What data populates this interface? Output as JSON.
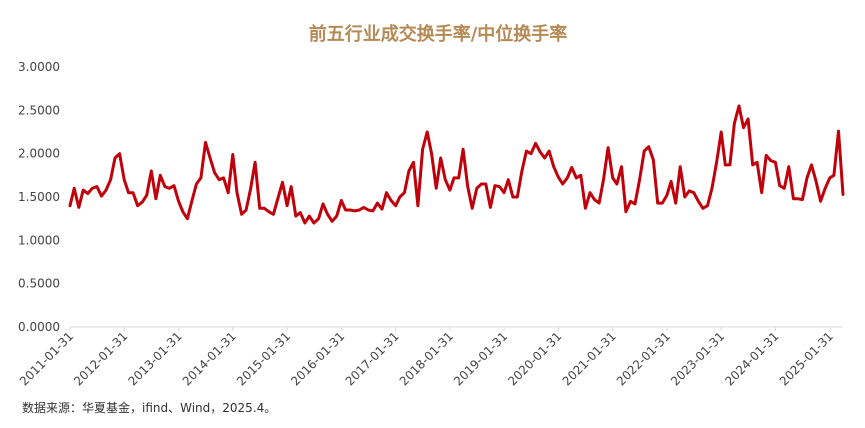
{
  "chart_data": {
    "type": "line",
    "title": "前五行业成交换手率/中位换手率",
    "xlabel": "",
    "ylabel": "",
    "ylim": [
      0,
      3.0
    ],
    "y_ticks": [
      "0.0000",
      "0.5000",
      "1.0000",
      "1.5000",
      "2.0000",
      "2.5000",
      "3.0000"
    ],
    "x_ticks": [
      "2011-01-31",
      "2012-01-31",
      "2013-01-31",
      "2014-01-31",
      "2015-01-31",
      "2016-01-31",
      "2017-01-31",
      "2018-01-31",
      "2019-01-31",
      "2020-01-31",
      "2021-01-31",
      "2022-01-31",
      "2023-01-31",
      "2024-01-31",
      "2025-01-31"
    ],
    "x_range": [
      "2011-01-31",
      "2025-04-30"
    ],
    "grid": false,
    "line_color": "#c0000b",
    "series": [
      {
        "values": [
          1.4,
          1.6,
          1.38,
          1.58,
          1.54,
          1.6,
          1.62,
          1.51,
          1.58,
          1.7,
          1.95,
          2.0,
          1.7,
          1.55,
          1.55,
          1.4,
          1.44,
          1.52,
          1.8,
          1.48,
          1.75,
          1.62,
          1.6,
          1.63,
          1.45,
          1.33,
          1.25,
          1.45,
          1.65,
          1.72,
          2.13,
          1.95,
          1.78,
          1.7,
          1.72,
          1.55,
          1.99,
          1.55,
          1.3,
          1.35,
          1.6,
          1.9,
          1.37,
          1.37,
          1.33,
          1.3,
          1.48,
          1.67,
          1.4,
          1.62,
          1.28,
          1.32,
          1.2,
          1.28,
          1.2,
          1.25,
          1.42,
          1.3,
          1.22,
          1.28,
          1.46,
          1.35,
          1.35,
          1.34,
          1.35,
          1.38,
          1.35,
          1.34,
          1.43,
          1.36,
          1.55,
          1.46,
          1.4,
          1.5,
          1.55,
          1.8,
          1.9,
          1.4,
          2.05,
          2.25,
          2.0,
          1.6,
          1.95,
          1.7,
          1.58,
          1.72,
          1.72,
          2.05,
          1.62,
          1.37,
          1.6,
          1.65,
          1.65,
          1.38,
          1.63,
          1.62,
          1.55,
          1.7,
          1.5,
          1.5,
          1.8,
          2.03,
          2.0,
          2.12,
          2.02,
          1.95,
          2.03,
          1.85,
          1.73,
          1.65,
          1.72,
          1.84,
          1.72,
          1.75,
          1.37,
          1.55,
          1.47,
          1.43,
          1.7,
          2.07,
          1.72,
          1.65,
          1.85,
          1.33,
          1.45,
          1.42,
          1.7,
          2.03,
          2.08,
          1.93,
          1.43,
          1.43,
          1.52,
          1.68,
          1.43,
          1.85,
          1.5,
          1.57,
          1.55,
          1.45,
          1.37,
          1.4,
          1.6,
          1.9,
          2.25,
          1.87,
          1.87,
          2.35,
          2.55,
          2.3,
          2.4,
          1.87,
          1.9,
          1.55,
          1.98,
          1.92,
          1.9,
          1.63,
          1.6,
          1.85,
          1.48,
          1.48,
          1.47,
          1.72,
          1.87,
          1.68,
          1.45,
          1.6,
          1.72,
          1.75,
          2.26,
          1.53
        ]
      }
    ],
    "source": "数据来源：华夏基金，ifind、Wind，2025.4。"
  }
}
